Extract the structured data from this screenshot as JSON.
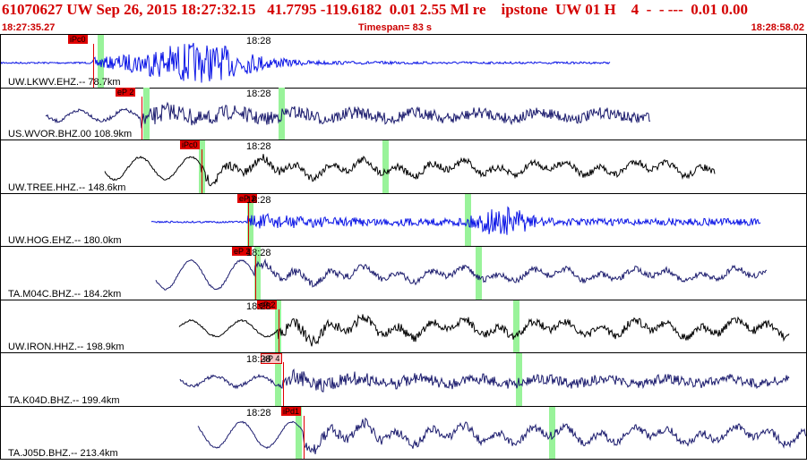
{
  "header": {
    "title": "61070627 UW Sep 26, 2015 18:27:32.15   41.7795 -119.6182  0.01 2.55 Ml re    ipstone  UW 01 H    4  -  - ---  0.01 0.00",
    "start_time": "18:27:35.27",
    "timespan": "Timespan=  83 s",
    "end_time": "18:28:58.02"
  },
  "panels": [
    {
      "station": "UW.LKWV.EHZ.-- 78.7km",
      "time_label": "18:28",
      "pick": "iPc0",
      "pick_style": "red",
      "color": "#0a14e6"
    },
    {
      "station": "US.WVOR.BHZ.00 108.9km",
      "time_label": "18:28",
      "pick": "eP 2",
      "pick_style": "red",
      "color": "#1c1c6e"
    },
    {
      "station": "UW.TREE.HHZ.-- 148.6km",
      "time_label": "18:28",
      "pick": "iPc0",
      "pick_style": "red",
      "color": "#000000"
    },
    {
      "station": "UW.HOG.EHZ.-- 180.0km",
      "time_label": "18:28",
      "pick": "eP 2",
      "pick_style": "red",
      "color": "#0a14e6"
    },
    {
      "station": "TA.M04C.BHZ.-- 184.2km",
      "time_label": "18:28",
      "pick": "eP 2",
      "pick_style": "red",
      "color": "#1c1c6e"
    },
    {
      "station": "UW.IRON.HHZ.-- 198.9km",
      "time_label": "18:28",
      "pick": "eP 2",
      "pick_style": "red",
      "color": "#000000"
    },
    {
      "station": "TA.K04D.BHZ.-- 199.4km",
      "time_label": "18:28",
      "pick": "eP 4",
      "pick_style": "pink",
      "color": "#1c1c6e"
    },
    {
      "station": "TA.J05D.BHZ.-- 213.4km",
      "time_label": "18:28",
      "pick": "iPd1",
      "pick_style": "red",
      "color": "#1c1c6e"
    }
  ]
}
